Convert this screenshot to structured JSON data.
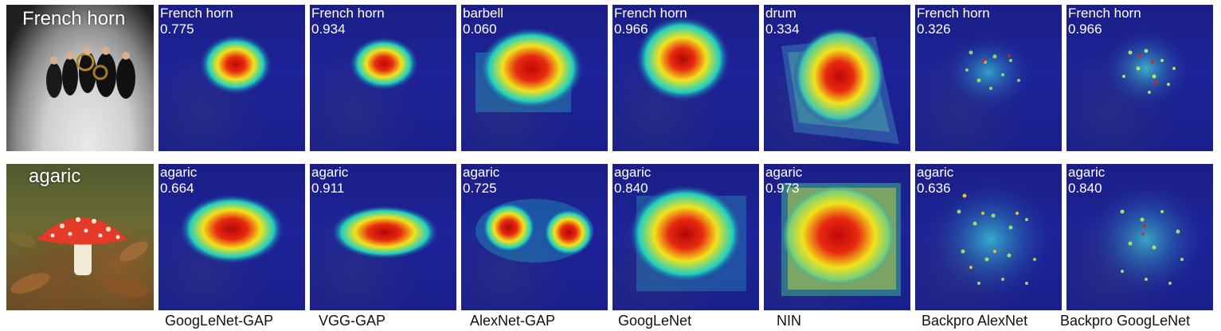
{
  "rows": [
    {
      "photo_label": "French horn",
      "cells": [
        {
          "class_label": "French horn",
          "score": "0.775"
        },
        {
          "class_label": "French horn",
          "score": "0.934"
        },
        {
          "class_label": "barbell",
          "score": "0.060"
        },
        {
          "class_label": "French horn",
          "score": "0.966"
        },
        {
          "class_label": "drum",
          "score": "0.334"
        },
        {
          "class_label": "French horn",
          "score": "0.326"
        },
        {
          "class_label": "French horn",
          "score": "0.966"
        }
      ]
    },
    {
      "photo_label": "agaric",
      "cells": [
        {
          "class_label": "agaric",
          "score": "0.664"
        },
        {
          "class_label": "agaric",
          "score": "0.911"
        },
        {
          "class_label": "agaric",
          "score": "0.725"
        },
        {
          "class_label": "agaric",
          "score": "0.840"
        },
        {
          "class_label": "agaric",
          "score": "0.973"
        },
        {
          "class_label": "agaric",
          "score": "0.636"
        },
        {
          "class_label": "agaric",
          "score": "0.840"
        }
      ]
    }
  ],
  "columns": [
    {
      "caption": "GoogLeNet-GAP"
    },
    {
      "caption": "VGG-GAP"
    },
    {
      "caption": "AlexNet-GAP"
    },
    {
      "caption": "GoogLeNet"
    },
    {
      "caption": "NIN"
    },
    {
      "caption": "Backpro AlexNet"
    },
    {
      "caption": "Backpro GoogLeNet"
    }
  ],
  "colors": {
    "heatmap_background": "#1d2398",
    "heat_hot": "#e01010",
    "heat_warm": "#f2e21c",
    "heat_mid": "#20d0c0",
    "label_text": "#ffffff",
    "caption_text": "#111111"
  }
}
